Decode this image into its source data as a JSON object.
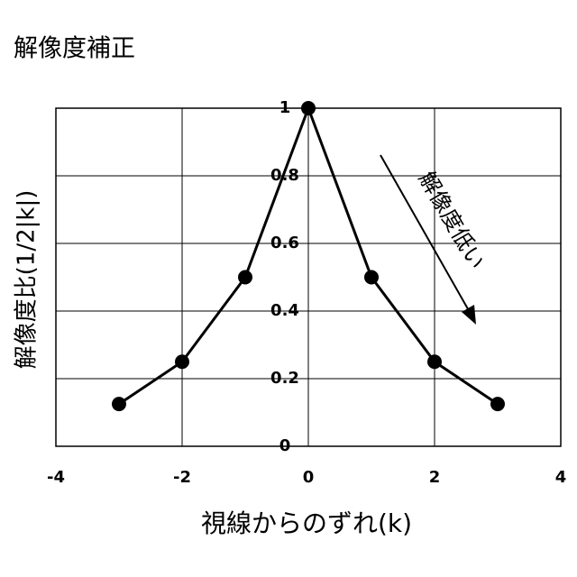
{
  "chart_data": {
    "type": "line",
    "title": "解像度補正",
    "x_label": "視線からのずれ(k)",
    "y_label": "解像度比(1/2|k|)",
    "annotation": "解像度低い",
    "x": [
      -3,
      -2,
      -1,
      0,
      1,
      2,
      3
    ],
    "values": [
      0.125,
      0.25,
      0.5,
      1,
      0.5,
      0.25,
      0.125
    ],
    "color": "#000000",
    "xlim": [
      -4,
      4
    ],
    "xticks": [
      -4,
      -2,
      0,
      2,
      4
    ],
    "ylim": [
      0,
      1
    ],
    "yticks": [
      0,
      0.2,
      0.4,
      0.6,
      0.8,
      1
    ],
    "grid": true
  }
}
